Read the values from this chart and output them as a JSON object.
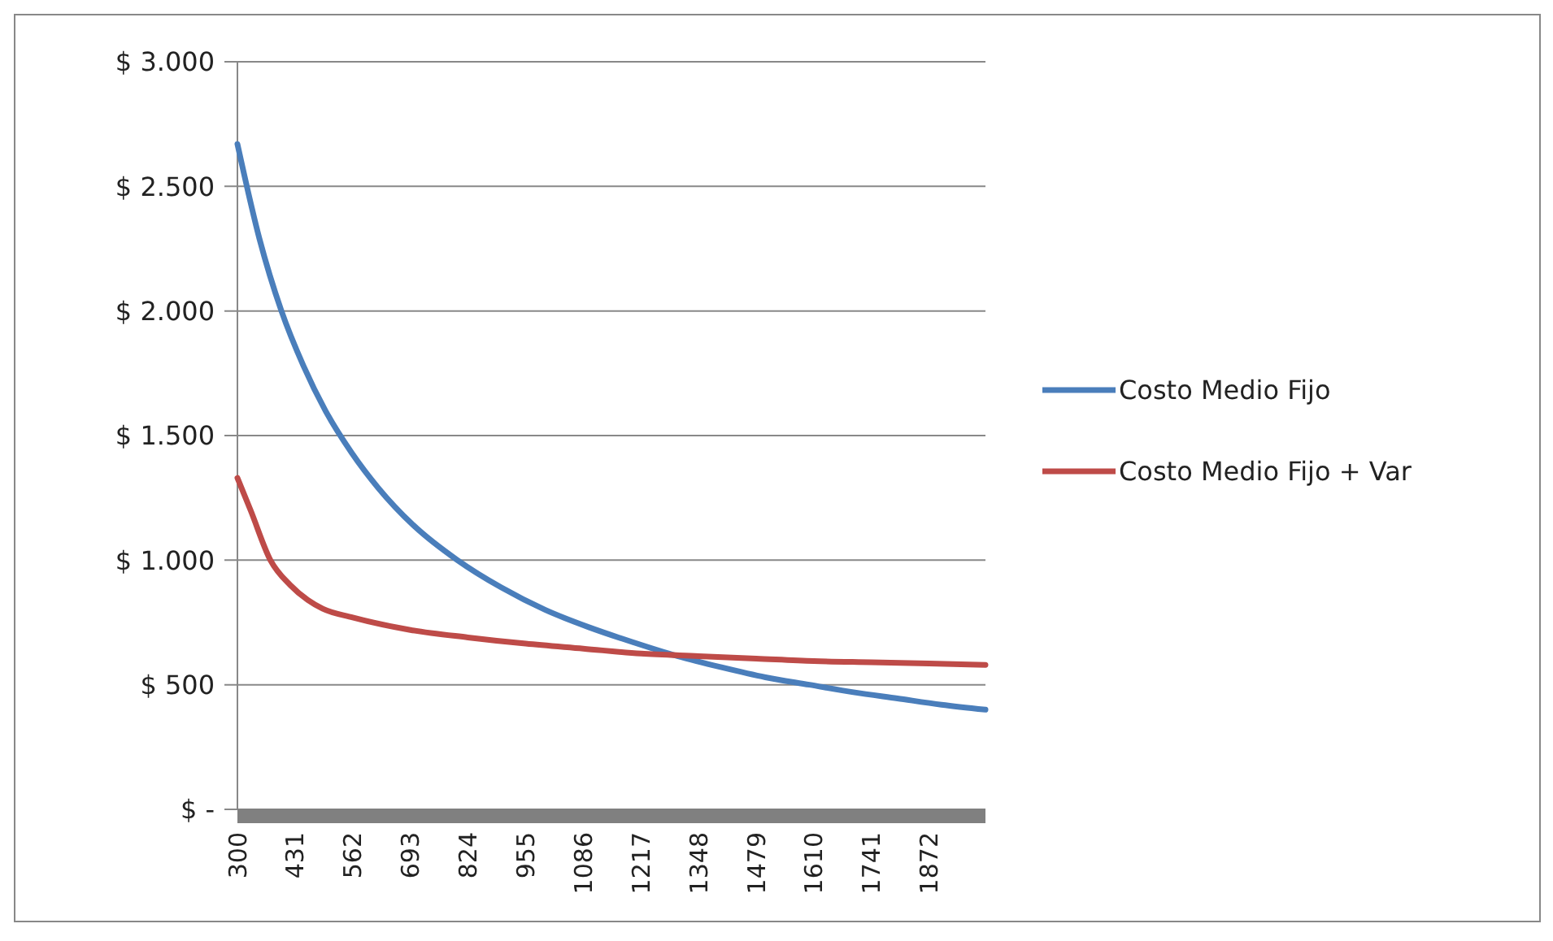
{
  "chart_data": {
    "type": "line",
    "xlim": [
      300,
      2000
    ],
    "xticks": [
      300,
      431,
      562,
      693,
      824,
      955,
      1086,
      1217,
      1348,
      1479,
      1610,
      1741,
      1872
    ],
    "ylim": [
      0,
      3000
    ],
    "yticks": [
      {
        "value": 0,
        "label": "$ -"
      },
      {
        "value": 500,
        "label": "$ 500"
      },
      {
        "value": 1000,
        "label": "$ 1.000"
      },
      {
        "value": 1500,
        "label": "$ 1.500"
      },
      {
        "value": 2000,
        "label": "$ 2.000"
      },
      {
        "value": 2500,
        "label": "$ 2.500"
      },
      {
        "value": 3000,
        "label": "$ 3.000"
      }
    ],
    "grid": "y",
    "legend": "right",
    "marker": "none",
    "line_style": "solid",
    "series": [
      {
        "name": "Costo Medio Fijo",
        "color": "#4a7ebb",
        "x": [
          300,
          350,
          400,
          450,
          500,
          560,
          620,
          700,
          800,
          900,
          1000,
          1100,
          1200,
          1300,
          1400,
          1500,
          1600,
          1700,
          1800,
          1900,
          2000
        ],
        "values": [
          2670,
          2290,
          2000,
          1780,
          1600,
          1430,
          1290,
          1140,
          1000,
          890,
          800,
          730,
          670,
          615,
          570,
          530,
          500,
          470,
          445,
          420,
          400
        ]
      },
      {
        "name": "Costo Medio Fijo + Var",
        "color": "#be4b48",
        "x": [
          300,
          330,
          375,
          420,
          460,
          494,
          562,
          693,
          824,
          955,
          1086,
          1217,
          1348,
          1479,
          1610,
          1741,
          1872,
          2000
        ],
        "values": [
          1330,
          1200,
          1000,
          900,
          840,
          805,
          770,
          720,
          690,
          665,
          645,
          625,
          615,
          605,
          595,
          590,
          585,
          580
        ]
      }
    ]
  }
}
